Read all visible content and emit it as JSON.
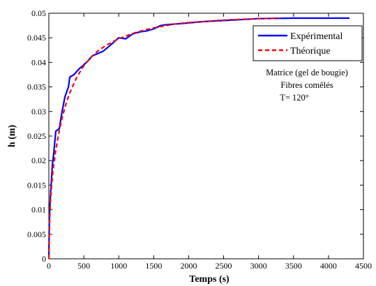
{
  "chart_data": {
    "type": "line",
    "xlabel": "Temps (s)",
    "ylabel": "h (m)",
    "xlim": [
      0,
      4500
    ],
    "ylim": [
      0,
      0.05
    ],
    "x_ticks": [
      0,
      500,
      1000,
      1500,
      2000,
      2500,
      3000,
      3500,
      4000,
      4500
    ],
    "y_ticks": [
      0,
      0.005,
      0.01,
      0.015,
      0.02,
      0.025,
      0.03,
      0.035,
      0.04,
      0.045,
      0.05
    ],
    "grid": false,
    "legend_position": "top-right",
    "series": [
      {
        "name": "Expérimental",
        "color": "#0000ff",
        "style": "solid",
        "x": [
          0,
          5,
          10,
          20,
          35,
          50,
          70,
          100,
          150,
          190,
          230,
          280,
          300,
          360,
          420,
          500,
          560,
          620,
          700,
          780,
          880,
          1000,
          1100,
          1200,
          1300,
          1400,
          1500,
          1600,
          1700,
          1900,
          2200,
          2600,
          3000,
          3500,
          4000,
          4300
        ],
        "y": [
          0,
          0.006,
          0.009,
          0.012,
          0.0155,
          0.019,
          0.0215,
          0.026,
          0.0265,
          0.03,
          0.033,
          0.035,
          0.037,
          0.0375,
          0.0385,
          0.0395,
          0.0403,
          0.0413,
          0.0418,
          0.0423,
          0.0435,
          0.045,
          0.0448,
          0.0458,
          0.0462,
          0.0464,
          0.0468,
          0.0475,
          0.0477,
          0.0479,
          0.0483,
          0.0486,
          0.0489,
          0.049,
          0.049,
          0.049
        ]
      },
      {
        "name": "Théorique",
        "color": "#ff0000",
        "style": "dashed",
        "x": [
          0,
          10,
          20,
          40,
          60,
          100,
          150,
          200,
          250,
          300,
          400,
          500,
          600,
          700,
          800,
          900,
          1000,
          1200,
          1400,
          1600,
          1800,
          2000,
          2300,
          2600,
          3000,
          3300
        ],
        "y": [
          0,
          0.007,
          0.011,
          0.015,
          0.018,
          0.0222,
          0.0262,
          0.0292,
          0.0318,
          0.0338,
          0.037,
          0.0393,
          0.041,
          0.0423,
          0.0433,
          0.0441,
          0.0448,
          0.0459,
          0.0467,
          0.0473,
          0.0478,
          0.0481,
          0.0484,
          0.0487,
          0.0489,
          0.049
        ]
      }
    ],
    "annotations": [
      "Matrice (gel de bougie)",
      "Fibres comêlés",
      "T= 120°"
    ]
  }
}
